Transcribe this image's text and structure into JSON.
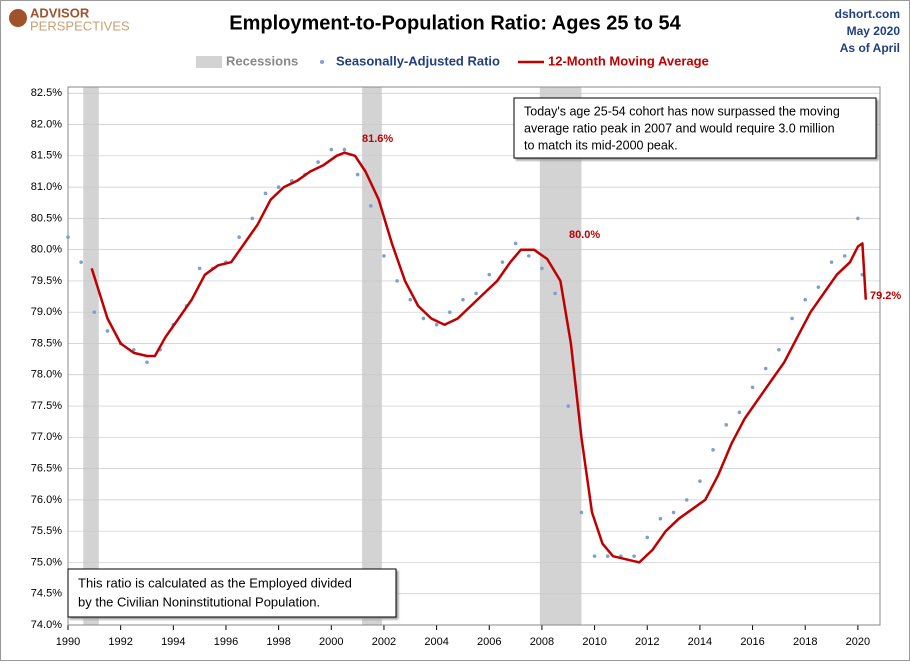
{
  "chart_data": {
    "type": "line",
    "title": "Employment-to-Population Ratio: Ages 25 to 54",
    "logo_top": "ADVISOR",
    "logo_bottom": "PERSPECTIVES",
    "source": "dshort.com",
    "date": "May 2020",
    "as_of": "As of April",
    "recession_label": "Recessions",
    "recession_color": "#d3d3d3",
    "recessions": [
      [
        1990.58,
        1991.17
      ],
      [
        2001.17,
        2001.92
      ],
      [
        2007.92,
        2009.5
      ]
    ],
    "xlim": [
      1990,
      2020.84
    ],
    "ylim": [
      74,
      82.6
    ],
    "xticks": [
      1990,
      1992,
      1994,
      1996,
      1998,
      2000,
      2002,
      2004,
      2006,
      2008,
      2010,
      2012,
      2014,
      2016,
      2018,
      2020
    ],
    "yticks": [
      {
        "value": 74.0,
        "label": "74.0%"
      },
      {
        "value": 74.5,
        "label": "74.5%"
      },
      {
        "value": 75.0,
        "label": "75.0%"
      },
      {
        "value": 75.5,
        "label": "75.5%"
      },
      {
        "value": 76.0,
        "label": "76.0%"
      },
      {
        "value": 76.5,
        "label": "76.5%"
      },
      {
        "value": 77.0,
        "label": "77.0%"
      },
      {
        "value": 77.5,
        "label": "77.5%"
      },
      {
        "value": 78.0,
        "label": "78.0%"
      },
      {
        "value": 78.5,
        "label": "78.5%"
      },
      {
        "value": 79.0,
        "label": "79.0%"
      },
      {
        "value": 79.5,
        "label": "79.5%"
      },
      {
        "value": 80.0,
        "label": "80.0%"
      },
      {
        "value": 80.5,
        "label": "80.5%"
      },
      {
        "value": 81.0,
        "label": "81.0%"
      },
      {
        "value": 81.5,
        "label": "81.5%"
      },
      {
        "value": 82.0,
        "label": "82.0%"
      },
      {
        "value": 82.5,
        "label": "82.5%"
      }
    ],
    "grid": true,
    "series": [
      {
        "name": "Seasonally-Adjusted Ratio",
        "type": "scatter",
        "color": "#7f9fcf",
        "x": [
          1990.0,
          1990.5,
          1991.0,
          1991.5,
          1992.0,
          1992.5,
          1993.0,
          1993.5,
          1994.0,
          1994.5,
          1995.0,
          1995.5,
          1996.0,
          1996.5,
          1997.0,
          1997.5,
          1998.0,
          1998.5,
          1999.0,
          1999.5,
          2000.0,
          2000.5,
          2001.0,
          2001.5,
          2002.0,
          2002.5,
          2003.0,
          2003.5,
          2004.0,
          2004.5,
          2005.0,
          2005.5,
          2006.0,
          2006.5,
          2007.0,
          2007.5,
          2008.0,
          2008.5,
          2009.0,
          2009.5,
          2010.0,
          2010.5,
          2011.0,
          2011.5,
          2012.0,
          2012.5,
          2013.0,
          2013.5,
          2014.0,
          2014.5,
          2015.0,
          2015.5,
          2016.0,
          2016.5,
          2017.0,
          2017.5,
          2018.0,
          2018.5,
          2019.0,
          2019.5,
          2020.0,
          2020.17
        ],
        "values": [
          80.2,
          79.8,
          79.0,
          78.7,
          78.5,
          78.4,
          78.2,
          78.4,
          78.8,
          79.1,
          79.7,
          79.7,
          79.8,
          80.2,
          80.5,
          80.9,
          81.0,
          81.1,
          81.2,
          81.4,
          81.6,
          81.6,
          81.2,
          80.7,
          79.9,
          79.5,
          79.2,
          78.9,
          78.8,
          79.0,
          79.2,
          79.3,
          79.6,
          79.8,
          80.1,
          79.9,
          79.7,
          79.3,
          77.5,
          75.8,
          75.1,
          75.1,
          75.1,
          75.1,
          75.4,
          75.7,
          75.8,
          76.0,
          76.3,
          76.8,
          77.2,
          77.4,
          77.8,
          78.1,
          78.4,
          78.9,
          79.2,
          79.4,
          79.8,
          79.9,
          80.5,
          79.6
        ]
      },
      {
        "name": "12-Month Moving Average",
        "type": "line",
        "color": "#c00000",
        "x": [
          1990.9,
          1991.5,
          1992.0,
          1992.5,
          1993.0,
          1993.3,
          1993.7,
          1994.2,
          1994.7,
          1995.2,
          1995.7,
          1996.2,
          1996.7,
          1997.2,
          1997.7,
          1998.2,
          1998.7,
          1999.2,
          1999.7,
          2000.2,
          2000.5,
          2000.9,
          2001.3,
          2001.8,
          2002.3,
          2002.8,
          2003.3,
          2003.8,
          2004.3,
          2004.8,
          2005.3,
          2005.8,
          2006.3,
          2006.8,
          2007.2,
          2007.7,
          2008.2,
          2008.7,
          2009.1,
          2009.5,
          2009.9,
          2010.3,
          2010.7,
          2011.2,
          2011.7,
          2012.2,
          2012.7,
          2013.2,
          2013.7,
          2014.2,
          2014.7,
          2015.2,
          2015.7,
          2016.2,
          2016.7,
          2017.2,
          2017.7,
          2018.2,
          2018.7,
          2019.2,
          2019.7,
          2020.0,
          2020.17,
          2020.3
        ],
        "values": [
          79.7,
          78.9,
          78.5,
          78.35,
          78.3,
          78.3,
          78.6,
          78.9,
          79.2,
          79.6,
          79.75,
          79.8,
          80.1,
          80.4,
          80.8,
          81.0,
          81.1,
          81.25,
          81.35,
          81.5,
          81.55,
          81.5,
          81.25,
          80.8,
          80.1,
          79.5,
          79.1,
          78.9,
          78.8,
          78.9,
          79.1,
          79.3,
          79.5,
          79.8,
          80.0,
          80.0,
          79.85,
          79.5,
          78.5,
          77.0,
          75.8,
          75.3,
          75.1,
          75.05,
          75.0,
          75.2,
          75.5,
          75.7,
          75.85,
          76.0,
          76.4,
          76.9,
          77.3,
          77.6,
          77.9,
          78.2,
          78.6,
          79.0,
          79.3,
          79.6,
          79.8,
          80.05,
          80.1,
          79.2
        ]
      }
    ],
    "annotations": [
      "81.6%",
      "80.0%",
      "79.2%"
    ],
    "note": [
      "Today's age 25-54  cohort has now surpassed the moving",
      "average ratio peak in 2007  and would require 3.0 million",
      "to match its mid-2000 peak."
    ],
    "footnote": [
      "This ratio is calculated as the Employed divided",
      "by the Civilian Noninstitutional Population."
    ]
  }
}
